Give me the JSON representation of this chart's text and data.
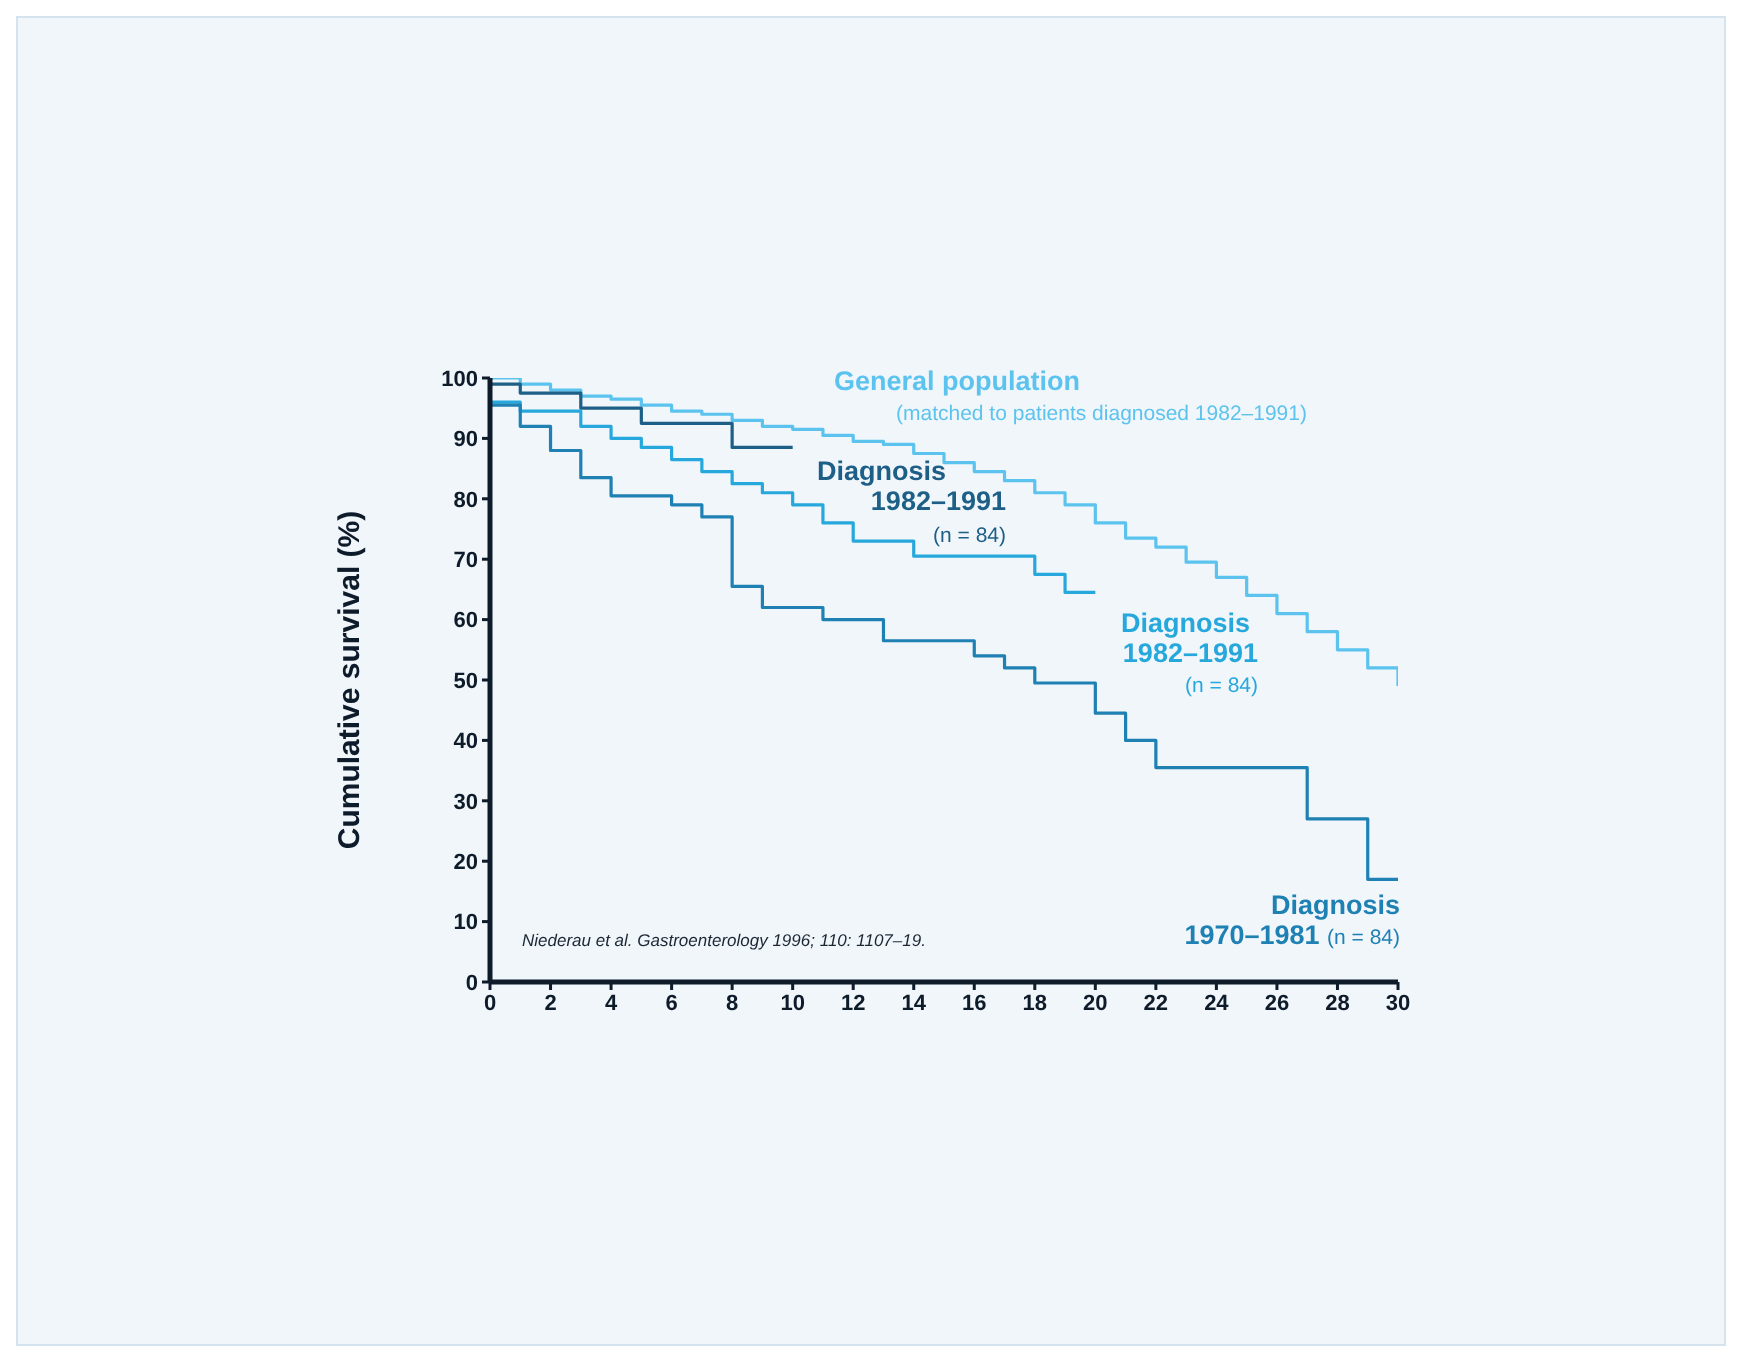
{
  "chart_data": {
    "type": "step",
    "xlim": [
      0,
      30
    ],
    "xticks": [
      0,
      2,
      4,
      6,
      8,
      10,
      12,
      14,
      16,
      18,
      20,
      22,
      24,
      26,
      28,
      30
    ],
    "ylim": [
      0,
      100
    ],
    "yticks": [
      0,
      10,
      20,
      30,
      40,
      50,
      60,
      70,
      80,
      90,
      100
    ],
    "ylabel": "Cumulative survival (%)",
    "grid": false,
    "legend": false,
    "marker": "none",
    "line_style": "solid",
    "annotations": [
      "Niederau et al. Gastroenterology 1996; 110: 1107–19."
    ],
    "series": [
      {
        "name": "General population\n(matched to patients diagnosed 1982–1991)",
        "color": "#5bc3ee",
        "x": [
          0,
          1,
          2,
          3,
          4,
          5,
          6,
          7,
          8,
          9,
          10,
          11,
          12,
          13,
          14,
          15,
          16,
          17,
          18,
          19,
          20,
          21,
          22,
          23,
          24,
          25,
          26,
          27,
          28,
          29,
          30
        ],
        "values": [
          100,
          99,
          98,
          97,
          96.5,
          95.5,
          94.5,
          94,
          93,
          92,
          91.5,
          90.5,
          89.5,
          89,
          87.5,
          86,
          84.5,
          83,
          81,
          79,
          76,
          73.5,
          72,
          69.5,
          67,
          64,
          61,
          58,
          55,
          52,
          49
        ]
      },
      {
        "name": "Diagnosis\n1982–1991\n(n = 84)",
        "color": "#1d5f86",
        "x": [
          0,
          1,
          3,
          5,
          8,
          10
        ],
        "values": [
          99,
          97.5,
          95,
          92.5,
          88.5,
          88.5
        ]
      },
      {
        "name": "Diagnosis\n1982–1991\n(n = 84)",
        "color": "#27a8dc",
        "x": [
          0,
          1,
          3,
          4,
          5,
          6,
          7,
          8,
          9,
          10,
          11,
          12,
          14,
          18,
          19,
          20
        ],
        "values": [
          96,
          94.5,
          92,
          90,
          88.5,
          86.5,
          84.5,
          82.5,
          81,
          79,
          76,
          73,
          70.5,
          67.5,
          64.5,
          64.5
        ]
      },
      {
        "name": "Diagnosis\n1970–1981 (n = 84)",
        "color": "#1f80b3",
        "x": [
          0,
          1,
          2,
          3,
          4,
          6,
          7,
          8,
          9,
          11,
          13,
          16,
          17,
          18,
          20,
          21,
          22,
          27,
          29,
          30
        ],
        "values": [
          95.5,
          92,
          88,
          83.5,
          80.5,
          79,
          77,
          65.5,
          62,
          60,
          56.5,
          54,
          52,
          49.5,
          44.5,
          40,
          35.5,
          27,
          17,
          17
        ]
      }
    ]
  }
}
